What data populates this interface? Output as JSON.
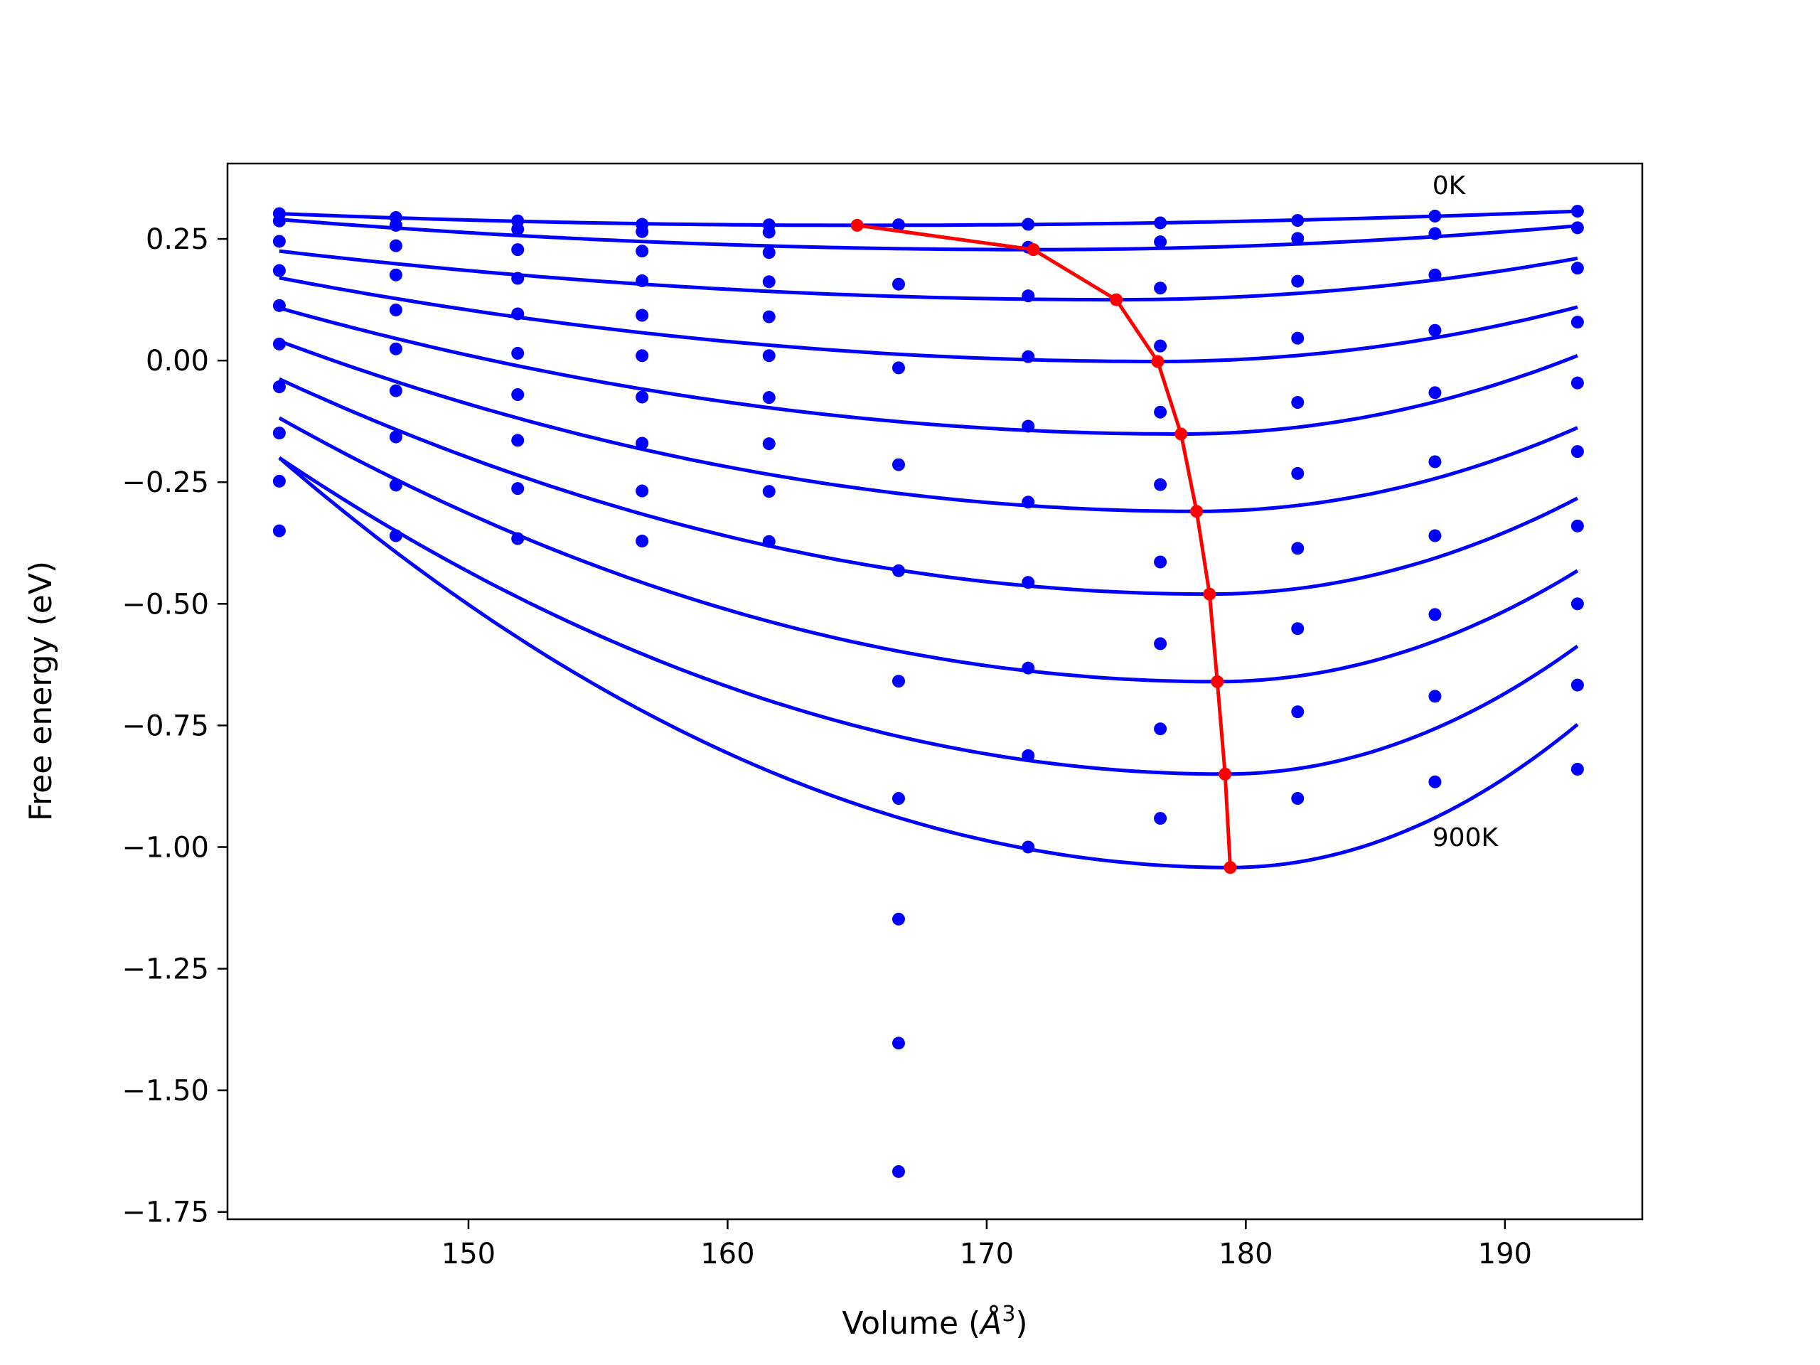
{
  "chart_data": {
    "type": "line",
    "xlabel": "Volume (Å³)",
    "xlabel_parts": {
      "prefix": "Volume (",
      "symbol": "Å",
      "exponent": "3",
      "suffix": ")"
    },
    "ylabel": "Free energy (eV)",
    "xlim": [
      140.7,
      195.3
    ],
    "ylim": [
      -1.765,
      0.405
    ],
    "xticks": [
      150,
      160,
      170,
      180,
      190
    ],
    "yticks": [
      0.25,
      0.0,
      -0.25,
      -0.5,
      -0.75,
      -1.0,
      -1.25,
      -1.5,
      -1.75
    ],
    "ytick_labels": [
      "0.25",
      "0.00",
      "−0.25",
      "−0.50",
      "−0.75",
      "−1.00",
      "−1.25",
      "−1.50",
      "−1.75"
    ],
    "grid": false,
    "colors": {
      "curves": "#0000ff",
      "points": "#0000ff",
      "minimum_path": "#ff0000"
    },
    "annotations": [
      {
        "text": "0K",
        "x": 187.2,
        "y": 0.36
      },
      {
        "text": "900K",
        "x": 187.2,
        "y": -0.98
      }
    ],
    "point_volumes": [
      142.7,
      147.2,
      151.9,
      156.7,
      161.6,
      166.6,
      171.6,
      176.7,
      182.0,
      187.3,
      192.8
    ],
    "points": [
      {
        "x": 142.7,
        "y": [
          0.302,
          0.287,
          0.245,
          0.185,
          0.113,
          0.034,
          -0.054,
          -0.149,
          -0.248,
          -0.35
        ]
      },
      {
        "x": 147.2,
        "y": [
          0.294,
          0.278,
          0.236,
          0.176,
          0.104,
          0.024,
          -0.062,
          -0.157,
          -0.256,
          -0.36
        ]
      },
      {
        "x": 151.9,
        "y": [
          0.287,
          0.27,
          0.228,
          0.169,
          0.096,
          0.015,
          -0.07,
          -0.164,
          -0.263,
          -0.366
        ]
      },
      {
        "x": 156.7,
        "y": [
          0.28,
          0.265,
          0.225,
          0.164,
          0.093,
          0.01,
          -0.075,
          -0.17,
          -0.268,
          -0.371
        ]
      },
      {
        "x": 161.6,
        "y": [
          0.279,
          0.264,
          0.222,
          0.162,
          0.09,
          0.01,
          -0.076,
          -0.171,
          -0.269,
          -0.372
        ]
      },
      {
        "x": 166.6,
        "y": [
          0.279,
          0.157,
          -0.015,
          -0.214,
          -0.432,
          -0.659,
          -0.9,
          -1.148,
          -1.403,
          -1.667
        ]
      },
      {
        "x": 171.6,
        "y": [
          0.28,
          0.233,
          0.133,
          0.008,
          -0.135,
          -0.291,
          -0.456,
          -0.632,
          -0.812,
          -1.0
        ]
      },
      {
        "x": 176.7,
        "y": [
          0.283,
          0.244,
          0.149,
          0.03,
          -0.106,
          -0.255,
          -0.414,
          -0.582,
          -0.757,
          -0.941
        ]
      },
      {
        "x": 182.0,
        "y": [
          0.288,
          0.251,
          0.163,
          0.046,
          -0.086,
          -0.232,
          -0.386,
          -0.551,
          -0.722,
          -0.9
        ]
      },
      {
        "x": 187.3,
        "y": [
          0.297,
          0.261,
          0.176,
          0.062,
          -0.066,
          -0.208,
          -0.36,
          -0.522,
          -0.69,
          -0.866
        ]
      },
      {
        "x": 192.8,
        "y": [
          0.307,
          0.273,
          0.19,
          0.079,
          -0.046,
          -0.187,
          -0.34,
          -0.5,
          -0.667,
          -0.84
        ]
      }
    ],
    "series": [
      {
        "curve": "0K",
        "x_range": [
          142.7,
          192.8
        ],
        "minimum": [
          165.0,
          0.278
        ],
        "end_values": [
          0.302,
          0.307
        ]
      },
      {
        "x_range": [
          142.7,
          192.8
        ],
        "minimum": [
          171.8,
          0.228
        ],
        "end_values": [
          0.29,
          0.277
        ]
      },
      {
        "x_range": [
          142.7,
          192.8
        ],
        "minimum": [
          175.0,
          0.125
        ],
        "end_values": [
          0.225,
          0.21
        ]
      },
      {
        "x_range": [
          142.7,
          192.8
        ],
        "minimum": [
          176.6,
          -0.002
        ],
        "end_values": [
          0.17,
          0.11
        ]
      },
      {
        "x_range": [
          142.7,
          192.8
        ],
        "minimum": [
          177.5,
          -0.151
        ],
        "end_values": [
          0.108,
          0.01
        ]
      },
      {
        "x_range": [
          142.7,
          192.8
        ],
        "minimum": [
          178.1,
          -0.31
        ],
        "end_values": [
          0.04,
          -0.138
        ]
      },
      {
        "x_range": [
          142.7,
          192.8
        ],
        "minimum": [
          178.6,
          -0.48
        ],
        "end_values": [
          -0.038,
          -0.283
        ]
      },
      {
        "x_range": [
          142.7,
          192.8
        ],
        "minimum": [
          178.9,
          -0.66
        ],
        "end_values": [
          -0.118,
          -0.432
        ]
      },
      {
        "x_range": [
          142.7,
          192.8
        ],
        "minimum": [
          179.2,
          -0.85
        ],
        "end_values": [
          -0.2,
          -0.587
        ]
      },
      {
        "curve": "900K",
        "x_range": [
          142.7,
          192.8
        ],
        "minimum": [
          179.4,
          -1.042
        ],
        "end_values": [
          -0.2,
          -0.748
        ]
      }
    ],
    "minimum_path": {
      "x": [
        165.0,
        171.8,
        175.0,
        176.6,
        177.5,
        178.1,
        178.6,
        178.9,
        179.2,
        179.4
      ],
      "y": [
        0.278,
        0.228,
        0.125,
        -0.002,
        -0.151,
        -0.31,
        -0.48,
        -0.66,
        -0.85,
        -1.042
      ]
    }
  }
}
